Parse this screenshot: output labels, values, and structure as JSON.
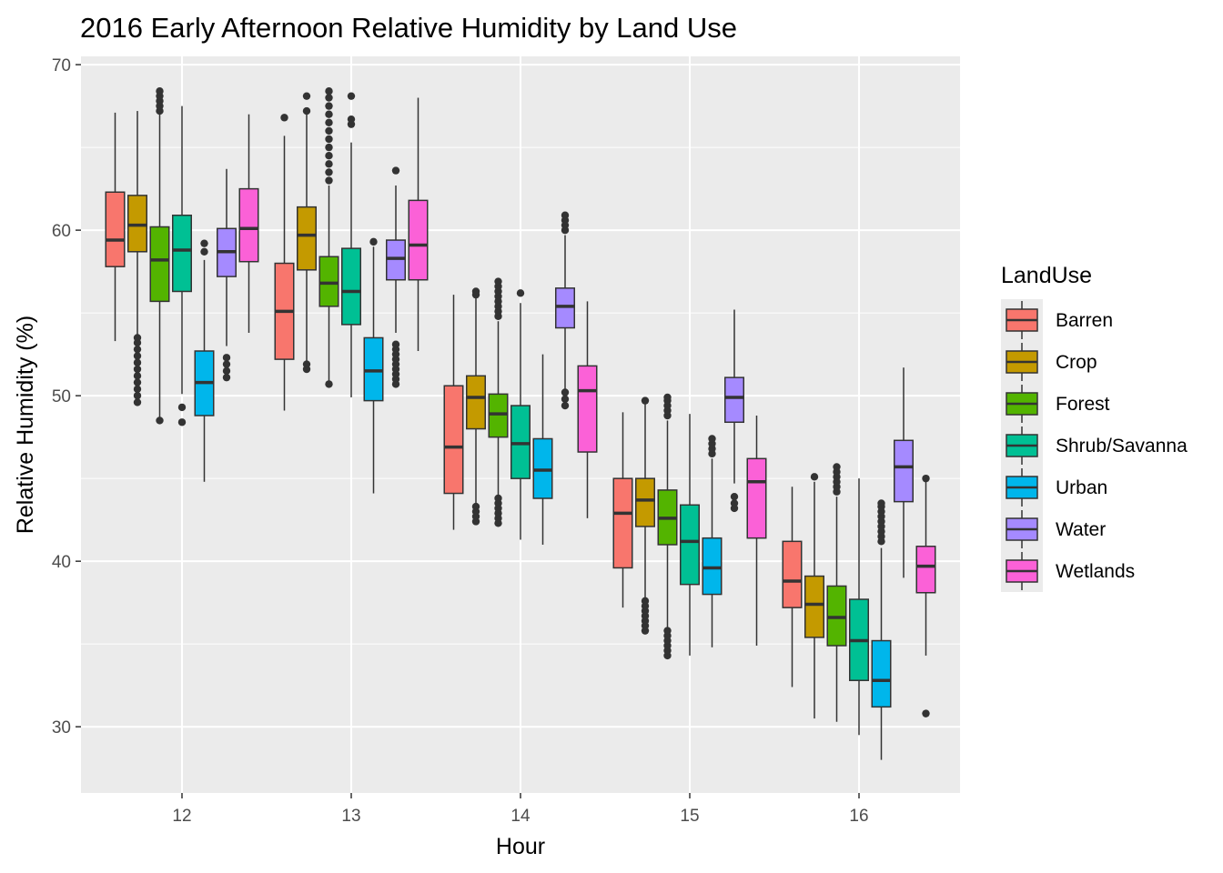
{
  "chart_data": {
    "type": "boxplot",
    "title": "2016 Early Afternoon Relative Humidity by Land Use",
    "xlabel": "Hour",
    "ylabel": "Relative Humidity (%)",
    "categories": [
      "12",
      "13",
      "14",
      "15",
      "16"
    ],
    "y_ticks": [
      "30",
      "40",
      "50",
      "60",
      "70"
    ],
    "ylim": [
      26,
      70.5
    ],
    "grid": true,
    "background": "#ebebeb",
    "legend": {
      "title": "LandUse",
      "position": "right"
    },
    "series": [
      {
        "name": "Barren",
        "color": "#F8766D",
        "boxes": [
          {
            "x": "12",
            "whisker_low": 53.3,
            "q1": 57.8,
            "median": 59.4,
            "q3": 62.3,
            "whisker_high": 67.1,
            "outliers": []
          },
          {
            "x": "13",
            "whisker_low": 49.1,
            "q1": 52.2,
            "median": 55.1,
            "q3": 58.0,
            "whisker_high": 65.7,
            "outliers": [
              66.8
            ]
          },
          {
            "x": "14",
            "whisker_low": 41.9,
            "q1": 44.1,
            "median": 46.9,
            "q3": 50.6,
            "whisker_high": 56.1,
            "outliers": []
          },
          {
            "x": "15",
            "whisker_low": 37.2,
            "q1": 39.6,
            "median": 42.9,
            "q3": 45.0,
            "whisker_high": 49.0,
            "outliers": []
          },
          {
            "x": "16",
            "whisker_low": 32.4,
            "q1": 37.2,
            "median": 38.8,
            "q3": 41.2,
            "whisker_high": 44.5,
            "outliers": []
          }
        ]
      },
      {
        "name": "Crop",
        "color": "#C49A00",
        "boxes": [
          {
            "x": "12",
            "whisker_low": 49.6,
            "q1": 58.7,
            "median": 60.3,
            "q3": 62.1,
            "whisker_high": 67.2,
            "outliers": [
              49.6,
              50.0,
              50.4,
              50.8,
              51.2,
              51.6,
              52.0,
              52.4,
              52.8,
              53.2,
              53.5
            ]
          },
          {
            "x": "13",
            "whisker_low": 51.6,
            "q1": 57.6,
            "median": 59.7,
            "q3": 61.4,
            "whisker_high": 67.0,
            "outliers": [
              51.6,
              51.9,
              67.2,
              68.1
            ]
          },
          {
            "x": "14",
            "whisker_low": 42.4,
            "q1": 48.0,
            "median": 49.9,
            "q3": 51.2,
            "whisker_high": 56.0,
            "outliers": [
              42.4,
              42.7,
              43.0,
              43.3,
              56.1,
              56.3
            ]
          },
          {
            "x": "15",
            "whisker_low": 35.8,
            "q1": 42.1,
            "median": 43.7,
            "q3": 45.0,
            "whisker_high": 49.6,
            "outliers": [
              35.8,
              36.1,
              36.4,
              36.7,
              37.0,
              37.3,
              37.6,
              49.7
            ]
          },
          {
            "x": "16",
            "whisker_low": 30.5,
            "q1": 35.4,
            "median": 37.4,
            "q3": 39.1,
            "whisker_high": 44.8,
            "outliers": [
              45.1
            ]
          }
        ]
      },
      {
        "name": "Forest",
        "color": "#53B400",
        "boxes": [
          {
            "x": "12",
            "whisker_low": 48.5,
            "q1": 55.7,
            "median": 58.2,
            "q3": 60.2,
            "whisker_high": 67.0,
            "outliers": [
              48.5,
              67.2,
              67.5,
              67.8,
              68.1,
              68.4
            ]
          },
          {
            "x": "13",
            "whisker_low": 50.8,
            "q1": 55.4,
            "median": 56.8,
            "q3": 58.4,
            "whisker_high": 62.7,
            "outliers": [
              50.7,
              63.0,
              63.5,
              64.0,
              64.5,
              65.0,
              65.5,
              66.0,
              66.5,
              67.0,
              67.5,
              68.0,
              68.4
            ]
          },
          {
            "x": "14",
            "whisker_low": 42.3,
            "q1": 47.5,
            "median": 48.9,
            "q3": 50.1,
            "whisker_high": 54.5,
            "outliers": [
              42.3,
              42.6,
              42.9,
              43.2,
              43.5,
              43.8,
              54.8,
              55.1,
              55.4,
              55.7,
              56.0,
              56.3,
              56.6,
              56.9
            ]
          },
          {
            "x": "15",
            "whisker_low": 34.3,
            "q1": 41.0,
            "median": 42.6,
            "q3": 44.3,
            "whisker_high": 48.5,
            "outliers": [
              34.3,
              34.6,
              34.9,
              35.2,
              35.5,
              35.8,
              48.8,
              49.1,
              49.4,
              49.7,
              49.9
            ]
          },
          {
            "x": "16",
            "whisker_low": 30.3,
            "q1": 34.9,
            "median": 36.6,
            "q3": 38.5,
            "whisker_high": 43.9,
            "outliers": [
              44.2,
              44.5,
              44.8,
              45.1,
              45.4,
              45.7
            ]
          }
        ]
      },
      {
        "name": "Shrub/Savanna",
        "color": "#00C094",
        "boxes": [
          {
            "x": "12",
            "whisker_low": 50.1,
            "q1": 56.3,
            "median": 58.8,
            "q3": 60.9,
            "whisker_high": 67.5,
            "outliers": [
              48.4,
              49.3
            ]
          },
          {
            "x": "13",
            "whisker_low": 49.9,
            "q1": 54.3,
            "median": 56.3,
            "q3": 58.9,
            "whisker_high": 65.3,
            "outliers": [
              66.4,
              66.7,
              68.1
            ]
          },
          {
            "x": "14",
            "whisker_low": 41.3,
            "q1": 45.0,
            "median": 47.1,
            "q3": 49.4,
            "whisker_high": 55.6,
            "outliers": [
              56.2
            ]
          },
          {
            "x": "15",
            "whisker_low": 34.3,
            "q1": 38.6,
            "median": 41.2,
            "q3": 43.4,
            "whisker_high": 48.9,
            "outliers": []
          },
          {
            "x": "16",
            "whisker_low": 29.5,
            "q1": 32.8,
            "median": 35.2,
            "q3": 37.7,
            "whisker_high": 45.0,
            "outliers": []
          }
        ]
      },
      {
        "name": "Urban",
        "color": "#00B6EB",
        "boxes": [
          {
            "x": "12",
            "whisker_low": 44.8,
            "q1": 48.8,
            "median": 50.8,
            "q3": 52.7,
            "whisker_high": 58.2,
            "outliers": [
              58.7,
              59.2
            ]
          },
          {
            "x": "13",
            "whisker_low": 44.1,
            "q1": 49.7,
            "median": 51.5,
            "q3": 53.5,
            "whisker_high": 59.0,
            "outliers": [
              59.3
            ]
          },
          {
            "x": "14",
            "whisker_low": 41.0,
            "q1": 43.8,
            "median": 45.5,
            "q3": 47.4,
            "whisker_high": 52.5,
            "outliers": []
          },
          {
            "x": "15",
            "whisker_low": 34.8,
            "q1": 38.0,
            "median": 39.6,
            "q3": 41.4,
            "whisker_high": 46.2,
            "outliers": [
              46.5,
              46.8,
              47.1,
              47.4
            ]
          },
          {
            "x": "16",
            "whisker_low": 28.0,
            "q1": 31.2,
            "median": 32.8,
            "q3": 35.2,
            "whisker_high": 40.8,
            "outliers": [
              41.2,
              41.5,
              41.8,
              42.1,
              42.4,
              42.7,
              43.0,
              43.3,
              43.5
            ]
          }
        ]
      },
      {
        "name": "Water",
        "color": "#A58AFF",
        "boxes": [
          {
            "x": "12",
            "whisker_low": 53.0,
            "q1": 57.2,
            "median": 58.7,
            "q3": 60.1,
            "whisker_high": 63.7,
            "outliers": [
              51.1,
              51.5,
              51.9,
              52.3
            ]
          },
          {
            "x": "13",
            "whisker_low": 53.8,
            "q1": 57.0,
            "median": 58.3,
            "q3": 59.4,
            "whisker_high": 62.7,
            "outliers": [
              50.7,
              51.0,
              51.3,
              51.6,
              51.9,
              52.2,
              52.5,
              52.8,
              53.1,
              63.6
            ]
          },
          {
            "x": "14",
            "whisker_low": 49.3,
            "q1": 54.1,
            "median": 55.4,
            "q3": 56.5,
            "whisker_high": 59.7,
            "outliers": [
              49.4,
              49.8,
              50.2,
              60.0,
              60.3,
              60.6,
              60.9
            ]
          },
          {
            "x": "15",
            "whisker_low": 44.7,
            "q1": 48.4,
            "median": 49.9,
            "q3": 51.1,
            "whisker_high": 55.2,
            "outliers": [
              43.2,
              43.5,
              43.9
            ]
          },
          {
            "x": "16",
            "whisker_low": 39.0,
            "q1": 43.6,
            "median": 45.7,
            "q3": 47.3,
            "whisker_high": 51.7,
            "outliers": []
          }
        ]
      },
      {
        "name": "Wetlands",
        "color": "#FB61D7",
        "boxes": [
          {
            "x": "12",
            "whisker_low": 53.8,
            "q1": 58.1,
            "median": 60.1,
            "q3": 62.5,
            "whisker_high": 67.0,
            "outliers": []
          },
          {
            "x": "13",
            "whisker_low": 52.7,
            "q1": 57.0,
            "median": 59.1,
            "q3": 61.8,
            "whisker_high": 68.0,
            "outliers": []
          },
          {
            "x": "14",
            "whisker_low": 42.6,
            "q1": 46.6,
            "median": 50.3,
            "q3": 51.8,
            "whisker_high": 55.7,
            "outliers": []
          },
          {
            "x": "15",
            "whisker_low": 34.9,
            "q1": 41.4,
            "median": 44.8,
            "q3": 46.2,
            "whisker_high": 48.8,
            "outliers": []
          },
          {
            "x": "16",
            "whisker_low": 34.3,
            "q1": 38.1,
            "median": 39.7,
            "q3": 40.9,
            "whisker_high": 44.8,
            "outliers": [
              45.0,
              30.8
            ]
          }
        ]
      }
    ]
  }
}
